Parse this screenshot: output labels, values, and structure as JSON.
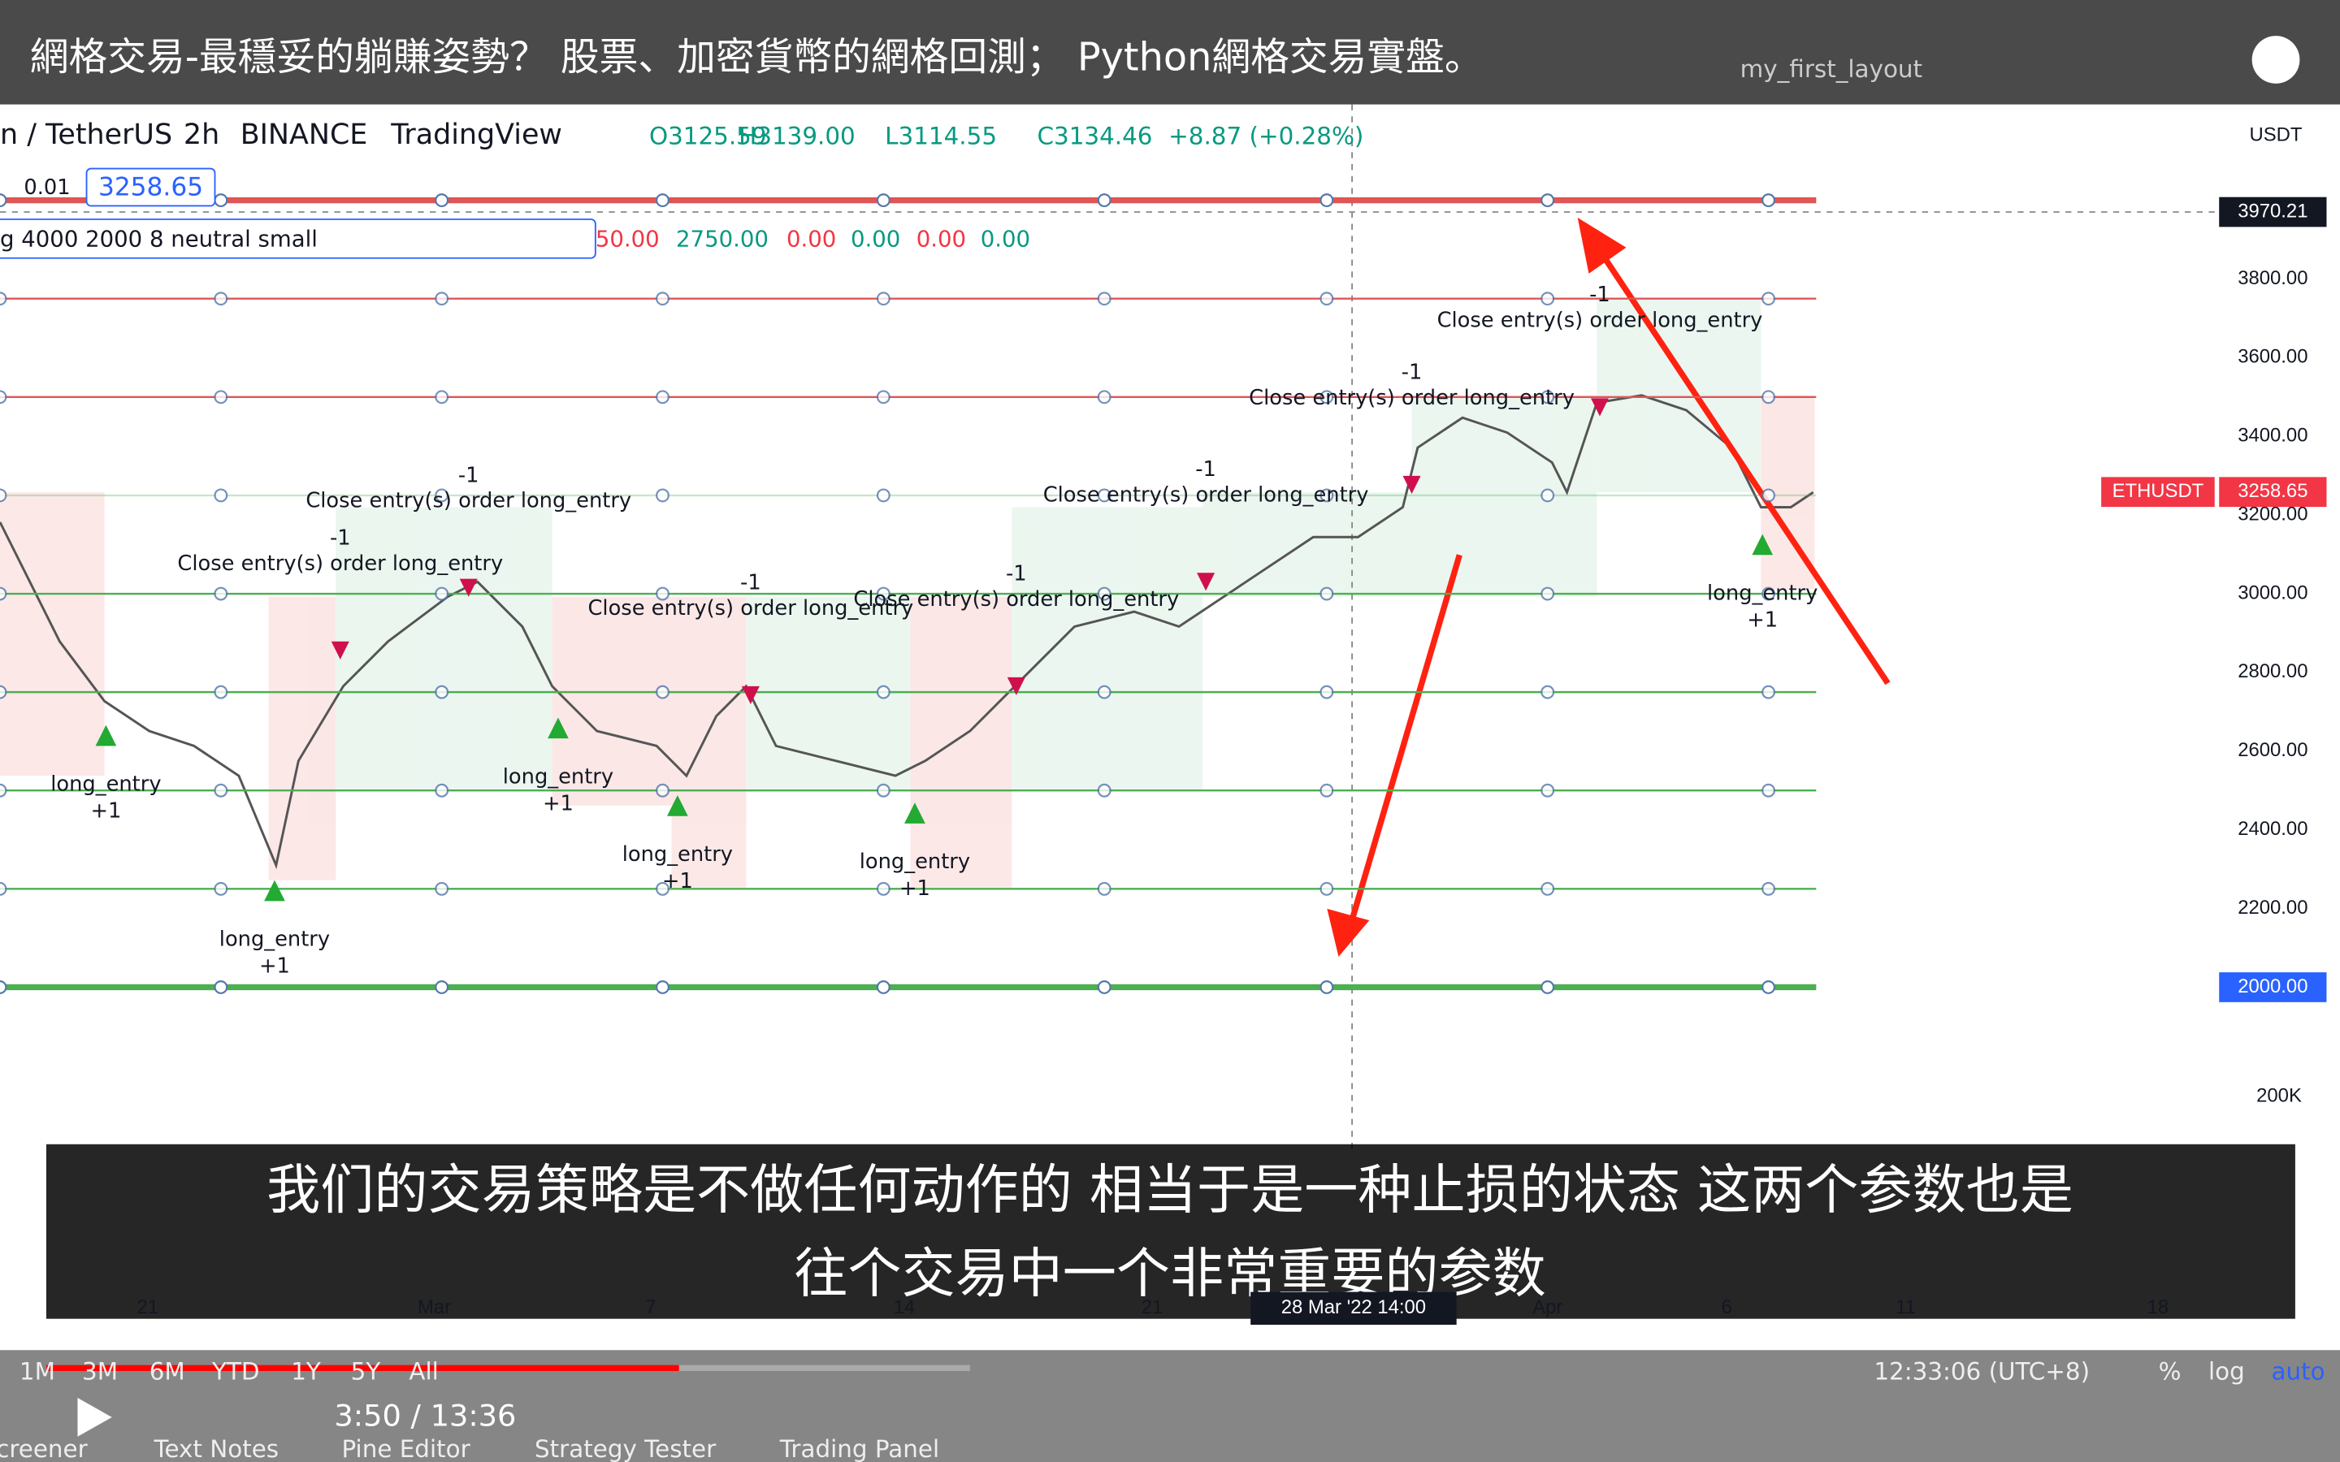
{
  "video": {
    "title": "網格交易-最穩妥的躺賺姿勢？ 股票、加密貨幣的網格回測； Python網格交易實盤。",
    "time": "3:50 / 13:36",
    "subtitles": [
      "我们的交易策略是不做任何动作的 相当于是一种止损的状态 这两个参数也是",
      "往个交易中一个非常重要的参数"
    ]
  },
  "toolbar": {
    "layout": "my_first_layout"
  },
  "symbol": {
    "name": "n / TetherUS",
    "interval": "2h",
    "exchange": "BINANCE",
    "source": "TradingView",
    "ohlc": [
      "O3125.59",
      "H3139.00",
      "L3114.55",
      "C3134.46",
      "+8.87 (+0.28%)"
    ],
    "currency": "USDT"
  },
  "order": {
    "step": "0.01",
    "price": "3258.65"
  },
  "indicator": {
    "name": "g 4000 2000 8 neutral small",
    "values": [
      "50.00",
      "2750.00",
      "0.00",
      "0.00",
      "0.00",
      "0.00"
    ]
  },
  "price_axis": {
    "ticks": [
      {
        "value": 3800,
        "label": "3800.00"
      },
      {
        "value": 3600,
        "label": "3600.00"
      },
      {
        "value": 3400,
        "label": "3400.00"
      },
      {
        "value": 3200,
        "label": "3200.00"
      },
      {
        "value": 3000,
        "label": "3000.00"
      },
      {
        "value": 2800,
        "label": "2800.00"
      },
      {
        "value": 2600,
        "label": "2600.00"
      },
      {
        "value": 2400,
        "label": "2400.00"
      },
      {
        "value": 2200,
        "label": "2200.00"
      }
    ],
    "crosshair": {
      "value": 3970.21,
      "label": "3970.21"
    },
    "last": {
      "symbol": "ETHUSDT",
      "value": 3258.65,
      "label": "3258.65"
    },
    "bottom": {
      "value": 2000,
      "label": "2000.00"
    },
    "volume": "200K"
  },
  "grid_levels": [
    4000,
    3750,
    3500,
    3250,
    3000,
    2750,
    2500,
    2250,
    2000
  ],
  "close_orders": [
    {
      "label": "Close entry(s) order long_entry",
      "qty": "-1"
    },
    {
      "label": "Close entry(s) order long_entry",
      "qty": "-1"
    },
    {
      "label": "Close entry(s) order long_entry",
      "qty": "-1"
    },
    {
      "label": "Close entry(s) order long_entry",
      "qty": "-1"
    },
    {
      "label": "Close entry(s) order long_entry",
      "qty": "-1"
    },
    {
      "label": "Close entry(s) order long_entry",
      "qty": "-1"
    },
    {
      "label": "Close entry(s) order long_entry",
      "qty": "-1"
    }
  ],
  "long_orders": [
    {
      "label": "long_entry",
      "qty": "+1"
    },
    {
      "label": "long_entry",
      "qty": "+1"
    },
    {
      "label": "long_entry",
      "qty": "+1"
    },
    {
      "label": "long_entry",
      "qty": "+1"
    },
    {
      "label": "long_entry",
      "qty": "+1"
    },
    {
      "label": "long_entry",
      "qty": "+1"
    }
  ],
  "time_axis": [
    "21",
    "Mar",
    "7",
    "14",
    "21",
    "28 Mar '22  14:00",
    "Apr",
    "6",
    "11",
    "18"
  ],
  "ranges": [
    "1M",
    "3M",
    "6M",
    "YTD",
    "1Y",
    "5Y",
    "All"
  ],
  "clock": "12:33:06 (UTC+8)",
  "scale": [
    "%",
    "log",
    "auto"
  ],
  "bottom_tabs": [
    "creener",
    "Text Notes",
    "Pine Editor",
    "Strategy Tester",
    "Trading Panel"
  ]
}
